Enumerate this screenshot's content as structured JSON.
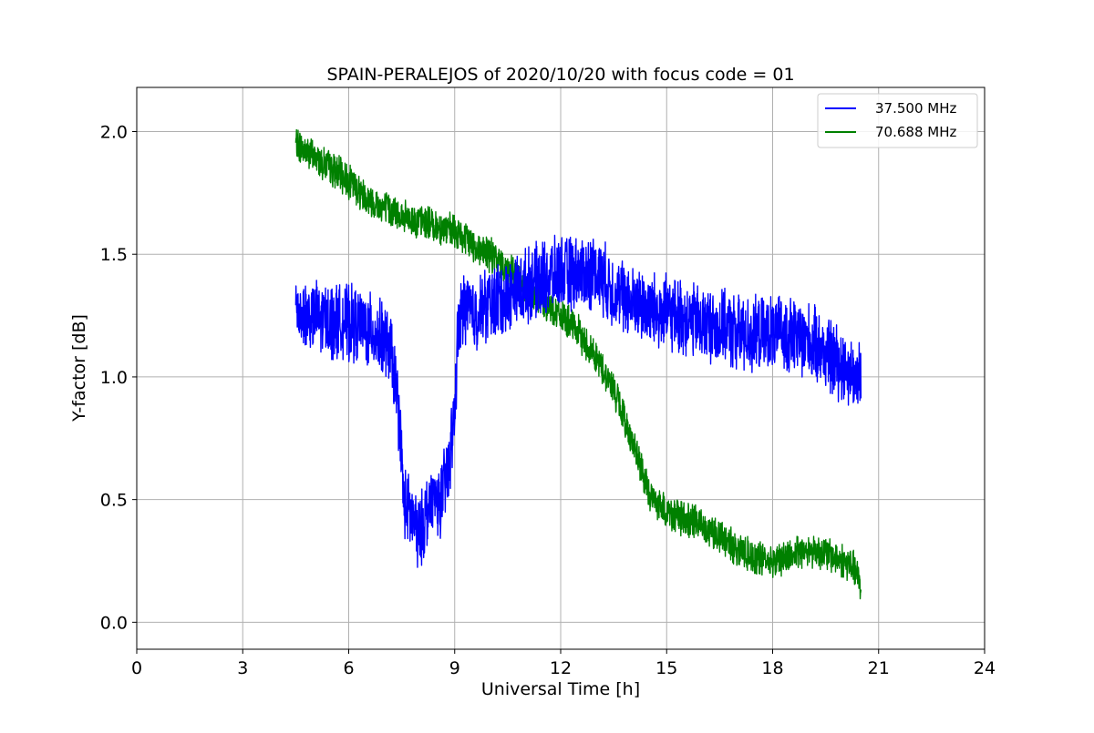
{
  "chart_data": {
    "type": "line",
    "title": "SPAIN-PERALEJOS of 2020/10/20 with focus code = 01",
    "xlabel": "Universal Time [h]",
    "ylabel": "Y-factor [dB]",
    "xlim": [
      0,
      24
    ],
    "ylim": [
      -0.11,
      2.18
    ],
    "xticks": [
      0,
      3,
      6,
      9,
      12,
      15,
      18,
      21,
      24
    ],
    "xtick_labels": [
      "0",
      "3",
      "6",
      "9",
      "12",
      "15",
      "18",
      "21",
      "24"
    ],
    "yticks": [
      0.0,
      0.5,
      1.0,
      1.5,
      2.0
    ],
    "ytick_labels": [
      "0.0",
      "0.5",
      "1.0",
      "1.5",
      "2.0"
    ],
    "grid": true,
    "legend_position": "top-right",
    "x": [
      4.5,
      5.0,
      5.5,
      6.0,
      6.5,
      7.0,
      7.2,
      7.35,
      7.45,
      7.55,
      7.7,
      7.85,
      8.0,
      8.2,
      8.4,
      8.6,
      8.8,
      9.0,
      9.1,
      9.3,
      9.5,
      10.0,
      10.5,
      11.0,
      11.5,
      12.0,
      12.5,
      13.0,
      13.5,
      14.0,
      14.5,
      15.0,
      15.5,
      16.0,
      16.5,
      17.0,
      17.5,
      18.0,
      18.5,
      19.0,
      19.5,
      20.0,
      20.3,
      20.5
    ],
    "series": [
      {
        "name": "37.500 MHz",
        "color": "#0000ff",
        "noise": 0.13,
        "values": [
          1.27,
          1.24,
          1.23,
          1.22,
          1.2,
          1.15,
          1.1,
          0.95,
          0.8,
          0.5,
          0.45,
          0.4,
          0.35,
          0.45,
          0.5,
          0.5,
          0.6,
          0.85,
          1.2,
          1.3,
          1.25,
          1.3,
          1.33,
          1.37,
          1.4,
          1.42,
          1.42,
          1.43,
          1.35,
          1.3,
          1.28,
          1.26,
          1.24,
          1.22,
          1.2,
          1.18,
          1.17,
          1.18,
          1.17,
          1.15,
          1.1,
          1.05,
          1.0,
          1.0
        ]
      },
      {
        "name": "70.688 MHz",
        "color": "#008000",
        "noise": 0.06,
        "values": [
          1.95,
          1.9,
          1.85,
          1.8,
          1.73,
          1.69,
          1.68,
          1.67,
          1.66,
          1.65,
          1.64,
          1.64,
          1.63,
          1.63,
          1.62,
          1.61,
          1.6,
          1.59,
          1.58,
          1.56,
          1.54,
          1.5,
          1.44,
          1.37,
          1.31,
          1.25,
          1.18,
          1.08,
          0.95,
          0.75,
          0.52,
          0.45,
          0.42,
          0.4,
          0.35,
          0.3,
          0.26,
          0.25,
          0.27,
          0.3,
          0.28,
          0.25,
          0.22,
          0.15
        ]
      }
    ]
  }
}
